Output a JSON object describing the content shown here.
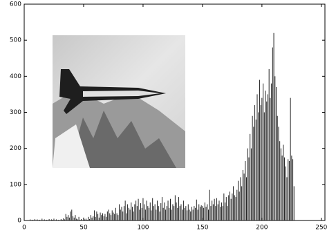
{
  "chart_data": {
    "type": "bar",
    "x": [
      0,
      1,
      2,
      3,
      4,
      5,
      6,
      7,
      8,
      9,
      10,
      11,
      12,
      13,
      14,
      15,
      16,
      17,
      18,
      19,
      20,
      21,
      22,
      23,
      24,
      25,
      26,
      27,
      28,
      29,
      30,
      31,
      32,
      33,
      34,
      35,
      36,
      37,
      38,
      39,
      40,
      41,
      42,
      43,
      44,
      45,
      46,
      47,
      48,
      49,
      50,
      51,
      52,
      53,
      54,
      55,
      56,
      57,
      58,
      59,
      60,
      61,
      62,
      63,
      64,
      65,
      66,
      67,
      68,
      69,
      70,
      71,
      72,
      73,
      74,
      75,
      76,
      77,
      78,
      79,
      80,
      81,
      82,
      83,
      84,
      85,
      86,
      87,
      88,
      89,
      90,
      91,
      92,
      93,
      94,
      95,
      96,
      97,
      98,
      99,
      100,
      101,
      102,
      103,
      104,
      105,
      106,
      107,
      108,
      109,
      110,
      111,
      112,
      113,
      114,
      115,
      116,
      117,
      118,
      119,
      120,
      121,
      122,
      123,
      124,
      125,
      126,
      127,
      128,
      129,
      130,
      131,
      132,
      133,
      134,
      135,
      136,
      137,
      138,
      139,
      140,
      141,
      142,
      143,
      144,
      145,
      146,
      147,
      148,
      149,
      150,
      151,
      152,
      153,
      154,
      155,
      156,
      157,
      158,
      159,
      160,
      161,
      162,
      163,
      164,
      165,
      166,
      167,
      168,
      169,
      170,
      171,
      172,
      173,
      174,
      175,
      176,
      177,
      178,
      179,
      180,
      181,
      182,
      183,
      184,
      185,
      186,
      187,
      188,
      189,
      190,
      191,
      192,
      193,
      194,
      195,
      196,
      197,
      198,
      199,
      200,
      201,
      202,
      203,
      204,
      205,
      206,
      207,
      208,
      209,
      210,
      211,
      212,
      213,
      214,
      215,
      216,
      217,
      218,
      219,
      220,
      221,
      222,
      223,
      224,
      225,
      226,
      227
    ],
    "values": [
      0,
      0,
      0,
      0,
      0,
      3,
      0,
      2,
      0,
      4,
      0,
      3,
      0,
      2,
      0,
      5,
      0,
      3,
      0,
      2,
      0,
      4,
      0,
      3,
      2,
      5,
      0,
      3,
      0,
      2,
      0,
      4,
      2,
      6,
      3,
      18,
      10,
      15,
      8,
      25,
      30,
      12,
      8,
      15,
      5,
      3,
      10,
      2,
      4,
      0,
      8,
      3,
      5,
      2,
      10,
      4,
      15,
      8,
      12,
      28,
      10,
      25,
      18,
      8,
      22,
      15,
      20,
      12,
      18,
      10,
      25,
      30,
      20,
      15,
      28,
      22,
      18,
      35,
      20,
      15,
      45,
      30,
      38,
      25,
      40,
      55,
      20,
      45,
      35,
      30,
      50,
      38,
      25,
      45,
      55,
      40,
      60,
      30,
      48,
      35,
      62,
      45,
      30,
      55,
      40,
      35,
      50,
      28,
      62,
      40,
      45,
      30,
      55,
      40,
      25,
      48,
      65,
      35,
      50,
      30,
      40,
      55,
      35,
      60,
      30,
      45,
      40,
      70,
      50,
      35,
      65,
      40,
      45,
      30,
      55,
      35,
      40,
      28,
      45,
      30,
      25,
      38,
      30,
      40,
      35,
      58,
      30,
      45,
      38,
      42,
      40,
      35,
      50,
      38,
      45,
      30,
      85,
      40,
      55,
      45,
      60,
      40,
      62,
      45,
      55,
      38,
      50,
      40,
      75,
      50,
      65,
      40,
      70,
      80,
      60,
      75,
      95,
      70,
      65,
      85,
      110,
      80,
      120,
      95,
      140,
      130,
      165,
      120,
      200,
      175,
      240,
      200,
      290,
      260,
      320,
      280,
      350,
      300,
      390,
      320,
      340,
      380,
      300,
      360,
      330,
      350,
      420,
      340,
      380,
      480,
      520,
      400,
      370,
      290,
      260,
      220,
      200,
      180,
      210,
      175,
      150,
      120,
      170,
      165,
      340,
      180,
      170,
      95
    ],
    "color": "#222222",
    "xlim": [
      0,
      253
    ],
    "ylim": [
      0,
      600
    ],
    "xticks": [
      0,
      50,
      100,
      150,
      200,
      250
    ],
    "yticks": [
      0,
      100,
      200,
      300,
      400,
      500,
      600
    ],
    "grid": false
  }
}
